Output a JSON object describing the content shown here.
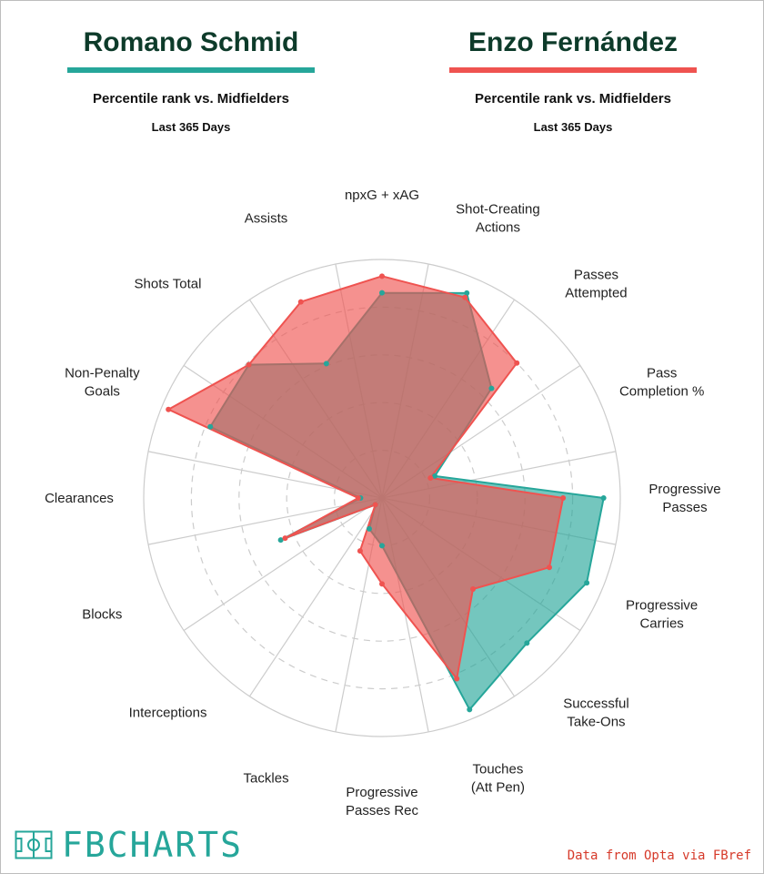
{
  "players": [
    {
      "name": "Romano Schmid",
      "subtitle": "Percentile rank vs. Midfielders",
      "period": "Last 365 Days"
    },
    {
      "name": "Enzo Fernández",
      "subtitle": "Percentile rank vs. Midfielders",
      "period": "Last 365 Days"
    }
  ],
  "colors": {
    "player1": "#26a69a",
    "player2": "#ef5350",
    "title": "#0d3b2a",
    "overlap": "#9c7468"
  },
  "brand": {
    "text": "FBCHARTS"
  },
  "source": "Data from Opta via FBref",
  "chart_data": {
    "type": "radar",
    "title": "Percentile rank vs. Midfielders",
    "range": [
      0,
      100
    ],
    "grid": true,
    "categories": [
      "npxG + xAG",
      "Shot-Creating Actions",
      "Passes Attempted",
      "Pass Completion %",
      "Progressive Passes",
      "Progressive Carries",
      "Successful Take-Ons",
      "Touches (Att Pen)",
      "Progressive Passes Rec",
      "Tackles",
      "Interceptions",
      "Blocks",
      "Clearances",
      "Non-Penalty Goals",
      "Shots Total",
      "Assists"
    ],
    "series": [
      {
        "name": "Romano Schmid",
        "values": [
          86,
          93,
          65,
          24,
          93,
          93,
          86,
          96,
          20,
          14,
          4,
          46,
          9,
          78,
          79,
          61
        ]
      },
      {
        "name": "Enzo Fernández",
        "values": [
          93,
          91,
          80,
          22,
          76,
          76,
          54,
          82,
          36,
          24,
          4,
          44,
          10,
          97,
          79,
          89
        ]
      }
    ]
  }
}
